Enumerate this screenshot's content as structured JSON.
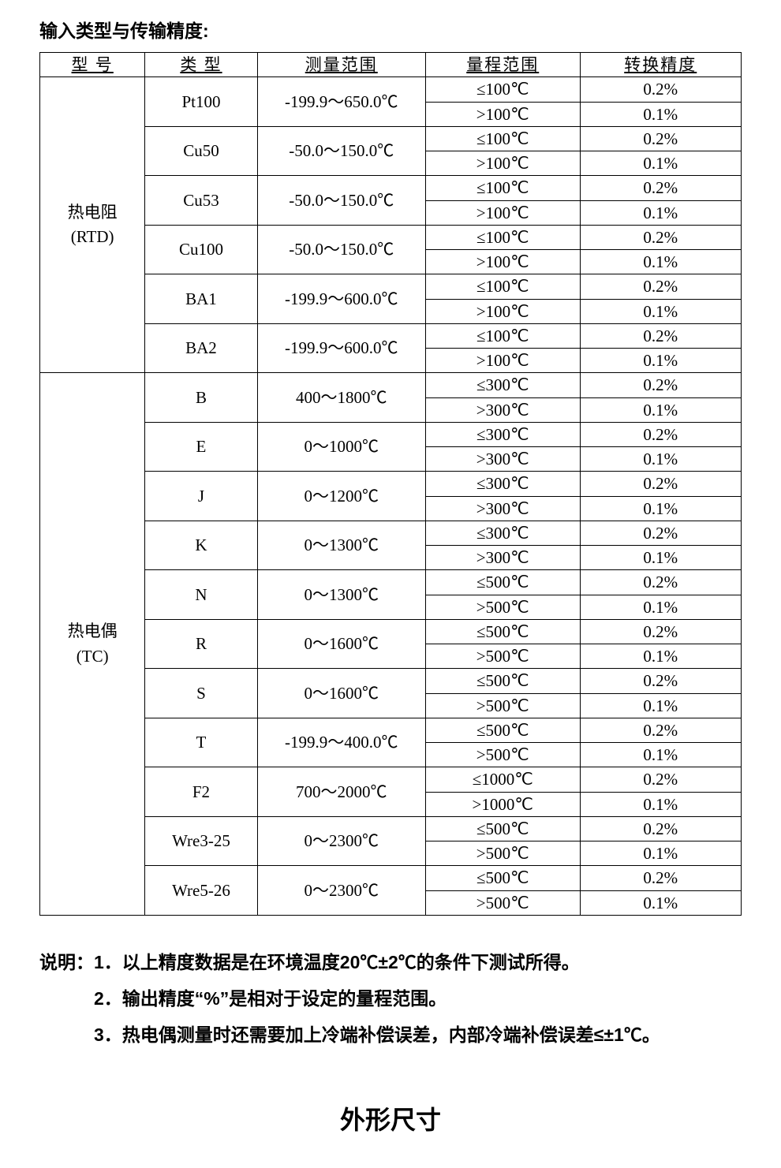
{
  "heading": "输入类型与传输精度:",
  "table": {
    "headers": {
      "model": "型 号",
      "type": "类 型",
      "meas": "测量范围",
      "range": "量程范围",
      "prec": "转换精度"
    },
    "groups": [
      {
        "model_line1": "热电阻",
        "model_line2": "(RTD)",
        "types": [
          {
            "type": "Pt100",
            "meas": "-199.9～650.0℃",
            "rows": [
              {
                "range": "≤100℃",
                "prec": "0.2%"
              },
              {
                "range": ">100℃",
                "prec": "0.1%"
              }
            ]
          },
          {
            "type": "Cu50",
            "meas": "-50.0～150.0℃",
            "rows": [
              {
                "range": "≤100℃",
                "prec": "0.2%"
              },
              {
                "range": ">100℃",
                "prec": "0.1%"
              }
            ]
          },
          {
            "type": "Cu53",
            "meas": "-50.0～150.0℃",
            "rows": [
              {
                "range": "≤100℃",
                "prec": "0.2%"
              },
              {
                "range": ">100℃",
                "prec": "0.1%"
              }
            ]
          },
          {
            "type": "Cu100",
            "meas": "-50.0～150.0℃",
            "rows": [
              {
                "range": "≤100℃",
                "prec": "0.2%"
              },
              {
                "range": ">100℃",
                "prec": "0.1%"
              }
            ]
          },
          {
            "type": "BA1",
            "meas": "-199.9～600.0℃",
            "rows": [
              {
                "range": "≤100℃",
                "prec": "0.2%"
              },
              {
                "range": ">100℃",
                "prec": "0.1%"
              }
            ]
          },
          {
            "type": "BA2",
            "meas": "-199.9～600.0℃",
            "rows": [
              {
                "range": "≤100℃",
                "prec": "0.2%"
              },
              {
                "range": ">100℃",
                "prec": "0.1%"
              }
            ]
          }
        ]
      },
      {
        "model_line1": "热电偶",
        "model_line2": "(TC)",
        "types": [
          {
            "type": "B",
            "meas": "400～1800℃",
            "rows": [
              {
                "range": "≤300℃",
                "prec": "0.2%"
              },
              {
                "range": ">300℃",
                "prec": "0.1%"
              }
            ]
          },
          {
            "type": "E",
            "meas": "0～1000℃",
            "rows": [
              {
                "range": "≤300℃",
                "prec": "0.2%"
              },
              {
                "range": ">300℃",
                "prec": "0.1%"
              }
            ]
          },
          {
            "type": "J",
            "meas": "0～1200℃",
            "rows": [
              {
                "range": "≤300℃",
                "prec": "0.2%"
              },
              {
                "range": ">300℃",
                "prec": "0.1%"
              }
            ]
          },
          {
            "type": "K",
            "meas": "0～1300℃",
            "rows": [
              {
                "range": "≤300℃",
                "prec": "0.2%"
              },
              {
                "range": ">300℃",
                "prec": "0.1%"
              }
            ]
          },
          {
            "type": "N",
            "meas": "0～1300℃",
            "rows": [
              {
                "range": "≤500℃",
                "prec": "0.2%"
              },
              {
                "range": ">500℃",
                "prec": "0.1%"
              }
            ]
          },
          {
            "type": "R",
            "meas": "0～1600℃",
            "rows": [
              {
                "range": "≤500℃",
                "prec": "0.2%"
              },
              {
                "range": ">500℃",
                "prec": "0.1%"
              }
            ]
          },
          {
            "type": "S",
            "meas": "0～1600℃",
            "rows": [
              {
                "range": "≤500℃",
                "prec": "0.2%"
              },
              {
                "range": ">500℃",
                "prec": "0.1%"
              }
            ]
          },
          {
            "type": "T",
            "meas": "-199.9～400.0℃",
            "rows": [
              {
                "range": "≤500℃",
                "prec": "0.2%"
              },
              {
                "range": ">500℃",
                "prec": "0.1%"
              }
            ]
          },
          {
            "type": "F2",
            "meas": "700～2000℃",
            "rows": [
              {
                "range": "≤1000℃",
                "prec": "0.2%"
              },
              {
                "range": ">1000℃",
                "prec": "0.1%"
              }
            ]
          },
          {
            "type": "Wre3-25",
            "meas": "0～2300℃",
            "rows": [
              {
                "range": "≤500℃",
                "prec": "0.2%"
              },
              {
                "range": ">500℃",
                "prec": "0.1%"
              }
            ]
          },
          {
            "type": "Wre5-26",
            "meas": "0～2300℃",
            "rows": [
              {
                "range": "≤500℃",
                "prec": "0.2%"
              },
              {
                "range": ">500℃",
                "prec": "0.1%"
              }
            ]
          }
        ]
      }
    ]
  },
  "notes": {
    "label": "说明：",
    "items": [
      "1．以上精度数据是在环境温度20℃±2℃的条件下测试所得。",
      "2．输出精度“%”是相对于设定的量程范围。",
      "3．热电偶测量时还需要加上冷端补偿误差，内部冷端补偿误差≤±1℃。"
    ]
  },
  "section_title": "外形尺寸"
}
